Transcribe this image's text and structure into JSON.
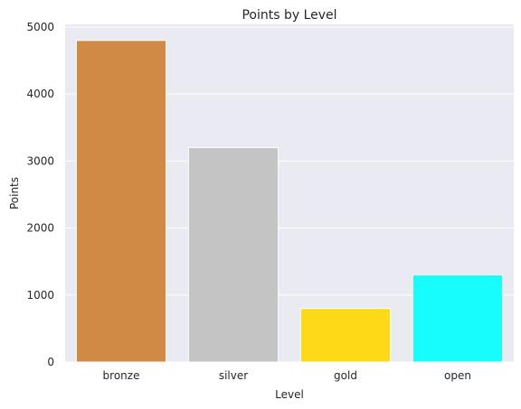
{
  "chart_data": {
    "type": "bar",
    "title": "Points by Level",
    "xlabel": "Level",
    "ylabel": "Points",
    "categories": [
      "bronze",
      "silver",
      "gold",
      "open"
    ],
    "values": [
      4800,
      3200,
      800,
      1300
    ],
    "colors": [
      "#cd7f32",
      "#c0c0c0",
      "#ffd700",
      "#00ffff"
    ],
    "bar_alpha": 0.9,
    "ylim": [
      0,
      5040
    ],
    "yticks": [
      0,
      1000,
      2000,
      3000,
      4000,
      5000
    ],
    "grid": true,
    "background": "#eaeaf2",
    "grid_color": "#ffffff"
  }
}
